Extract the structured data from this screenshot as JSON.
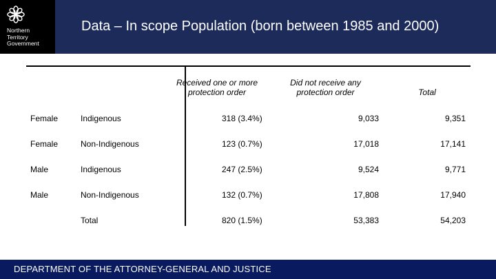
{
  "logo": {
    "text": "Northern\nTerritory\nGovernment",
    "icon": "flower-icon",
    "color": "#ffffff"
  },
  "title": "Data – In scope Population (born between 1985 and 2000)",
  "table": {
    "headers": {
      "received": "Received one or more protection order",
      "not_received": "Did not receive any protection order",
      "total": "Total"
    },
    "rows": [
      {
        "sex": "Female",
        "group": "Indigenous",
        "received": "318 (3.4%)",
        "not_received": "9,033",
        "total": "9,351"
      },
      {
        "sex": "Female",
        "group": "Non-Indigenous",
        "received": "123 (0.7%)",
        "not_received": "17,018",
        "total": "17,141"
      },
      {
        "sex": "Male",
        "group": "Indigenous",
        "received": "247 (2.5%)",
        "not_received": "9,524",
        "total": "9,771"
      },
      {
        "sex": "Male",
        "group": "Non-Indigenous",
        "received": "132 (0.7%)",
        "not_received": "17,808",
        "total": "17,940"
      }
    ],
    "total_row": {
      "label": "Total",
      "received": "820 (1.5%)",
      "not_received": "53,383",
      "total": "54,203"
    }
  },
  "footer": "DEPARTMENT OF THE ATTORNEY-GENERAL AND JUSTICE",
  "colors": {
    "header": "#1c2b5a",
    "footer": "#0a1a5e",
    "logo_bg": "#000000"
  }
}
